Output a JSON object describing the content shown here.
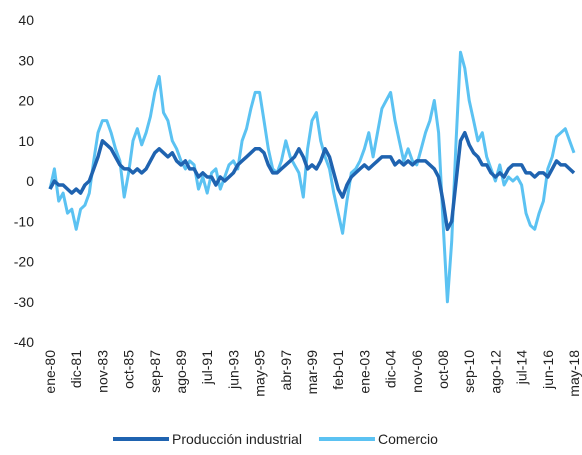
{
  "chart_data": {
    "type": "line",
    "categories": [
      "ene-80",
      null,
      null,
      null,
      null,
      null,
      "dic-81",
      null,
      null,
      null,
      null,
      null,
      "nov-83",
      null,
      null,
      null,
      null,
      null,
      "oct-85",
      null,
      null,
      null,
      null,
      null,
      "sep-87",
      null,
      null,
      null,
      null,
      null,
      "ago-89",
      null,
      null,
      null,
      null,
      null,
      "jul-91",
      null,
      null,
      null,
      null,
      null,
      "jun-93",
      null,
      null,
      null,
      null,
      null,
      "may-95",
      null,
      null,
      null,
      null,
      null,
      "abr-97",
      null,
      null,
      null,
      null,
      null,
      "mar-99",
      null,
      null,
      null,
      null,
      null,
      "feb-01",
      null,
      null,
      null,
      null,
      null,
      "ene-03",
      null,
      null,
      null,
      null,
      null,
      "dic-04",
      null,
      null,
      null,
      null,
      null,
      "nov-06",
      null,
      null,
      null,
      null,
      null,
      "oct-08",
      null,
      null,
      null,
      null,
      null,
      "sep-10",
      null,
      null,
      null,
      null,
      null,
      "ago-12",
      null,
      null,
      null,
      null,
      null,
      "jul-14",
      null,
      null,
      null,
      null,
      null,
      "jun-16",
      null,
      null,
      null,
      null,
      null,
      "may-18"
    ],
    "series": [
      {
        "name": "Producción industrial",
        "color": "#1f63b0",
        "width": 3.5,
        "values": [
          -2,
          0,
          -1,
          -1,
          -2,
          -3,
          -2,
          -3,
          -1,
          0,
          3,
          6,
          10,
          9,
          8,
          6,
          4,
          3,
          3,
          2,
          3,
          2,
          3,
          5,
          7,
          8,
          7,
          6,
          7,
          5,
          4,
          5,
          3,
          3,
          1,
          2,
          1,
          1,
          -1,
          1,
          0,
          1,
          2,
          4,
          5,
          6,
          7,
          8,
          8,
          7,
          4,
          2,
          2,
          3,
          4,
          5,
          6,
          8,
          6,
          3,
          4,
          3,
          5,
          8,
          6,
          2,
          -2,
          -4,
          -1,
          1,
          2,
          3,
          4,
          3,
          4,
          5,
          6,
          6,
          6,
          4,
          5,
          4,
          5,
          4,
          5,
          5,
          5,
          4,
          3,
          1,
          -5,
          -12,
          -10,
          0,
          10,
          12,
          9,
          7,
          6,
          4,
          4,
          2,
          1,
          2,
          1,
          3,
          4,
          4,
          4,
          2,
          2,
          1,
          2,
          2,
          1,
          3,
          5,
          4,
          4,
          3,
          2
        ]
      },
      {
        "name": "Comercio",
        "color": "#5bc2f2",
        "width": 3,
        "values": [
          -2,
          3,
          -5,
          -3,
          -8,
          -7,
          -12,
          -7,
          -6,
          -3,
          5,
          12,
          15,
          15,
          12,
          8,
          5,
          -4,
          2,
          10,
          13,
          9,
          12,
          16,
          22,
          26,
          17,
          15,
          10,
          8,
          5,
          3,
          5,
          4,
          -2,
          1,
          -3,
          2,
          3,
          -2,
          1,
          4,
          5,
          3,
          10,
          13,
          18,
          22,
          22,
          15,
          8,
          3,
          2,
          5,
          10,
          6,
          4,
          2,
          -4,
          8,
          15,
          17,
          10,
          6,
          3,
          -3,
          -8,
          -13,
          -5,
          2,
          3,
          5,
          8,
          12,
          6,
          12,
          18,
          20,
          22,
          15,
          10,
          5,
          8,
          5,
          4,
          8,
          12,
          15,
          20,
          12,
          -10,
          -30,
          -15,
          10,
          32,
          28,
          20,
          15,
          10,
          12,
          6,
          3,
          0,
          4,
          -1,
          1,
          0,
          1,
          -1,
          -8,
          -11,
          -12,
          -8,
          -5,
          3,
          6,
          11,
          12,
          13,
          10,
          7
        ]
      }
    ],
    "ylim": [
      -40,
      40
    ],
    "yticks": [
      -40,
      -30,
      -20,
      -10,
      0,
      10,
      20,
      30,
      40
    ],
    "grid": false,
    "legend": "bottom"
  }
}
